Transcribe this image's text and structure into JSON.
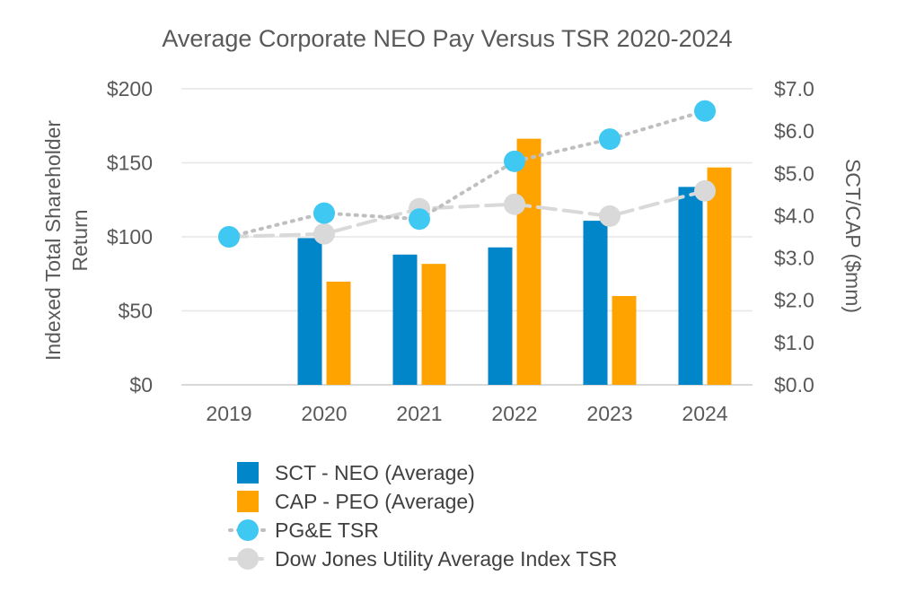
{
  "chart_data": {
    "type": "bar",
    "title": "Average Corporate NEO Pay Versus TSR 2020-2024",
    "categories": [
      "2019",
      "2020",
      "2021",
      "2022",
      "2023",
      "2024"
    ],
    "y_left": {
      "label_lines": [
        "Indexed Total Shareholder",
        "Return"
      ],
      "range": [
        0,
        200
      ],
      "ticks": [
        0,
        50,
        100,
        150,
        200
      ],
      "tick_labels": [
        "$0",
        "$50",
        "$100",
        "$150",
        "$200"
      ]
    },
    "y_right": {
      "label": "SCT/CAP ($mm)",
      "range": [
        0,
        7
      ],
      "ticks": [
        0,
        1,
        2,
        3,
        4,
        5,
        6,
        7
      ],
      "tick_labels": [
        "$0.0",
        "$1.0",
        "$2.0",
        "$3.0",
        "$4.0",
        "$5.0",
        "$6.0",
        "$7.0"
      ]
    },
    "grid": true,
    "legend_position": "bottom",
    "series": [
      {
        "name": "SCT - NEO (Average)",
        "type": "bar",
        "axis": "right",
        "color": "#0086C9",
        "values": [
          null,
          3.47,
          3.08,
          3.25,
          3.88,
          4.68
        ]
      },
      {
        "name": "CAP - PEO (Average)",
        "type": "bar",
        "axis": "right",
        "color": "#FFA300",
        "values": [
          null,
          2.44,
          2.86,
          5.82,
          2.1,
          5.14
        ]
      },
      {
        "name": "PG&E TSR",
        "type": "line",
        "axis": "left",
        "style": "dotted",
        "line_color": "#BFBFBF",
        "marker_color": "#3EC8F2",
        "values": [
          100,
          116,
          112,
          151,
          166,
          185
        ]
      },
      {
        "name": "Dow Jones Utility Average Index TSR",
        "type": "line",
        "axis": "left",
        "style": "dashed",
        "line_color": "#D9D9D9",
        "marker_color": "#D9D9D9",
        "values": [
          100,
          102,
          119,
          122,
          114,
          131
        ]
      }
    ]
  }
}
